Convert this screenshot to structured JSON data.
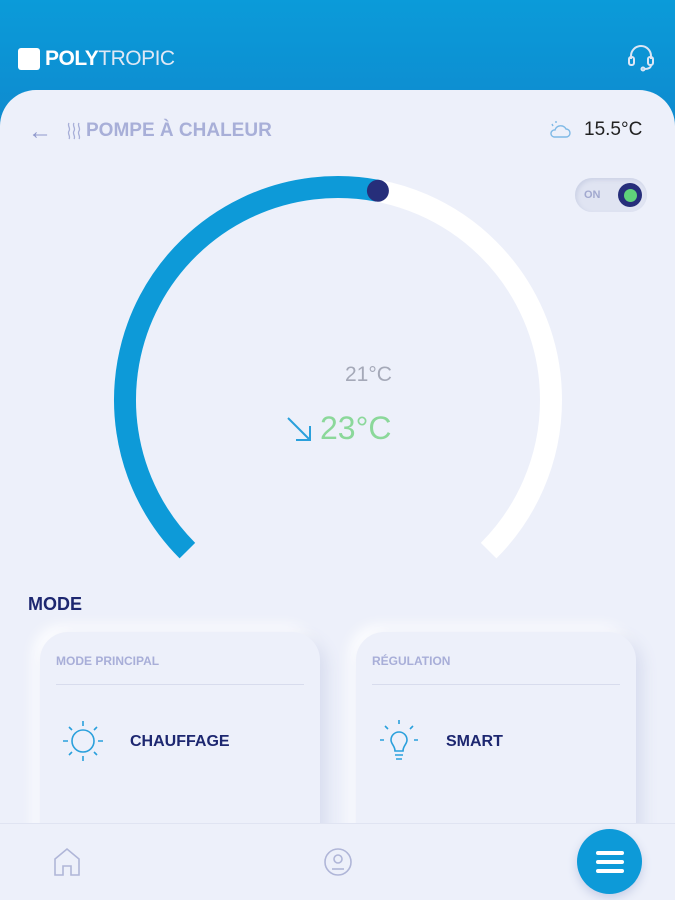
{
  "header": {
    "brand_bold": "POLY",
    "brand_light": "TROPIC",
    "support_icon": "headset-icon"
  },
  "page": {
    "title": "POMPE À CHALEUR",
    "title_icon": "heat-waves-icon",
    "outdoor_temp": "15.5°C",
    "weather_icon": "cloud-sun-icon"
  },
  "power": {
    "label": "ON",
    "state": true
  },
  "gauge": {
    "setpoint": "21°C",
    "current": "23°C",
    "trend_icon": "arrow-down-right-icon",
    "progress": 0.54,
    "colors": {
      "fill": "#0d9ad8",
      "track": "#ffffff",
      "handle": "#262e7a",
      "current": "#8bd89a"
    }
  },
  "mode": {
    "heading": "MODE",
    "cards": [
      {
        "label": "MODE PRINCIPAL",
        "value": "CHAUFFAGE",
        "icon": "sun-icon"
      },
      {
        "label": "RÉGULATION",
        "value": "SMART",
        "icon": "lightbulb-icon"
      }
    ]
  },
  "nav": {
    "home_icon": "home-icon",
    "profile_icon": "user-icon",
    "menu_icon": "menu-icon"
  }
}
